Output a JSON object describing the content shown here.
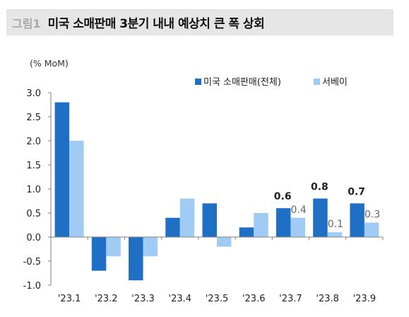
{
  "figure": {
    "label": "그림1",
    "title": "미국 소매판매 3분기 내내 예상치 큰 폭 상회"
  },
  "chart_data": {
    "type": "bar",
    "unit_label": "(% MoM)",
    "categories": [
      "'23.1",
      "'23.2",
      "'23.3",
      "'23.4",
      "'23.5",
      "'23.6",
      "'23.7",
      "'23.8",
      "'23.9"
    ],
    "ylim": [
      -1.0,
      3.0
    ],
    "yticks": [
      "3.0",
      "2.5",
      "2.0",
      "1.5",
      "1.0",
      "0.5",
      "0.0",
      "-0.5",
      "-1.0"
    ],
    "ytick_values": [
      3.0,
      2.5,
      2.0,
      1.5,
      1.0,
      0.5,
      0.0,
      -0.5,
      -1.0
    ],
    "grid": false,
    "legend_position": "top-right",
    "series": [
      {
        "name": "미국 소매판매(전체)",
        "color": "#1f6fc5",
        "values": [
          2.8,
          -0.7,
          -0.9,
          0.4,
          0.7,
          0.2,
          0.6,
          0.8,
          0.7
        ]
      },
      {
        "name": "서베이",
        "color": "#9fcbf4",
        "values": [
          2.0,
          -0.4,
          -0.4,
          0.8,
          -0.2,
          0.5,
          0.4,
          0.1,
          0.3
        ]
      }
    ],
    "data_labels": [
      {
        "series": 0,
        "index": 6,
        "text": "0.6",
        "bold": true
      },
      {
        "series": 1,
        "index": 6,
        "text": "0.4",
        "bold": false
      },
      {
        "series": 0,
        "index": 7,
        "text": "0.8",
        "bold": true
      },
      {
        "series": 1,
        "index": 7,
        "text": "0.1",
        "bold": false
      },
      {
        "series": 0,
        "index": 8,
        "text": "0.7",
        "bold": true
      },
      {
        "series": 1,
        "index": 8,
        "text": "0.3",
        "bold": false
      }
    ]
  }
}
